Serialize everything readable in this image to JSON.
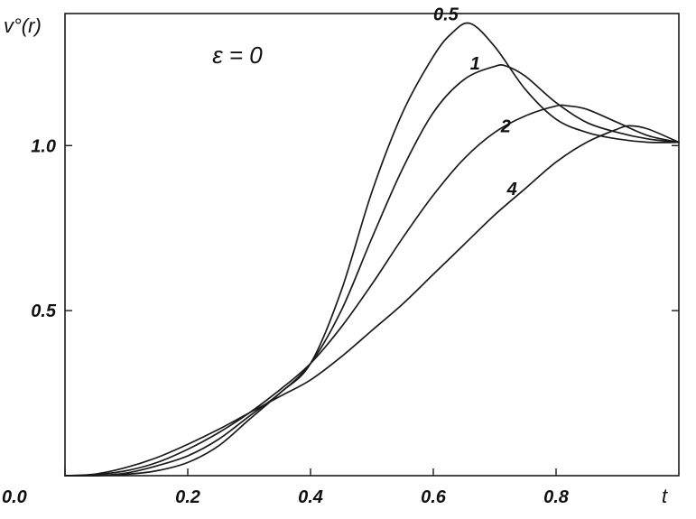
{
  "chart_data": {
    "type": "line",
    "title": "",
    "annotation": "ε = 0",
    "xlabel": "t",
    "ylabel": "v°(r)",
    "xlim": [
      0.0,
      1.0
    ],
    "ylim": [
      0.0,
      1.4
    ],
    "xticks": [
      0.0,
      0.2,
      0.4,
      0.6,
      0.8
    ],
    "xtick_labels": [
      "0.0",
      "0.2",
      "0.4",
      "0.6",
      "0.8"
    ],
    "yticks": [
      0.5,
      1.0
    ],
    "ytick_labels": [
      "0.5",
      "1.0"
    ],
    "grid": false,
    "legend": "none",
    "line_color": "#1a1a1a",
    "series": [
      {
        "name": "0.5",
        "x": [
          0.0,
          0.05,
          0.1,
          0.15,
          0.2,
          0.25,
          0.3,
          0.35,
          0.4,
          0.45,
          0.5,
          0.55,
          0.6,
          0.63,
          0.66,
          0.7,
          0.75,
          0.8,
          0.85,
          0.9,
          0.95,
          1.0
        ],
        "y": [
          0.0,
          0.0,
          0.004,
          0.015,
          0.04,
          0.09,
          0.17,
          0.25,
          0.34,
          0.56,
          0.86,
          1.1,
          1.27,
          1.34,
          1.37,
          1.3,
          1.17,
          1.08,
          1.04,
          1.02,
          1.01,
          1.01
        ]
      },
      {
        "name": "1",
        "x": [
          0.0,
          0.05,
          0.1,
          0.15,
          0.2,
          0.25,
          0.3,
          0.35,
          0.4,
          0.45,
          0.5,
          0.55,
          0.6,
          0.65,
          0.7,
          0.72,
          0.75,
          0.8,
          0.85,
          0.9,
          0.95,
          1.0
        ],
        "y": [
          0.0,
          0.0,
          0.008,
          0.03,
          0.06,
          0.11,
          0.18,
          0.25,
          0.34,
          0.5,
          0.72,
          0.93,
          1.1,
          1.2,
          1.24,
          1.24,
          1.21,
          1.13,
          1.07,
          1.04,
          1.02,
          1.01
        ]
      },
      {
        "name": "2",
        "x": [
          0.0,
          0.05,
          0.1,
          0.15,
          0.2,
          0.25,
          0.3,
          0.35,
          0.4,
          0.45,
          0.5,
          0.55,
          0.6,
          0.65,
          0.7,
          0.75,
          0.8,
          0.82,
          0.85,
          0.9,
          0.95,
          1.0
        ],
        "y": [
          0.0,
          0.003,
          0.015,
          0.04,
          0.08,
          0.13,
          0.19,
          0.26,
          0.34,
          0.45,
          0.58,
          0.72,
          0.85,
          0.96,
          1.04,
          1.09,
          1.12,
          1.12,
          1.11,
          1.07,
          1.03,
          1.01
        ]
      },
      {
        "name": "4",
        "x": [
          0.0,
          0.05,
          0.1,
          0.15,
          0.2,
          0.25,
          0.3,
          0.35,
          0.4,
          0.45,
          0.5,
          0.55,
          0.6,
          0.65,
          0.7,
          0.75,
          0.8,
          0.85,
          0.9,
          0.92,
          0.95,
          1.0
        ],
        "y": [
          0.0,
          0.005,
          0.025,
          0.055,
          0.095,
          0.14,
          0.19,
          0.24,
          0.29,
          0.36,
          0.44,
          0.52,
          0.61,
          0.7,
          0.79,
          0.87,
          0.95,
          1.01,
          1.05,
          1.06,
          1.05,
          1.01
        ]
      }
    ],
    "series_label_positions": [
      {
        "name": "0.5",
        "x": 0.6,
        "y": 1.38
      },
      {
        "name": "1",
        "x": 0.66,
        "y": 1.23
      },
      {
        "name": "2",
        "x": 0.71,
        "y": 1.04
      },
      {
        "name": "4",
        "x": 0.72,
        "y": 0.85
      }
    ],
    "annotation_position": {
      "x": 0.24,
      "y": 1.25
    }
  }
}
